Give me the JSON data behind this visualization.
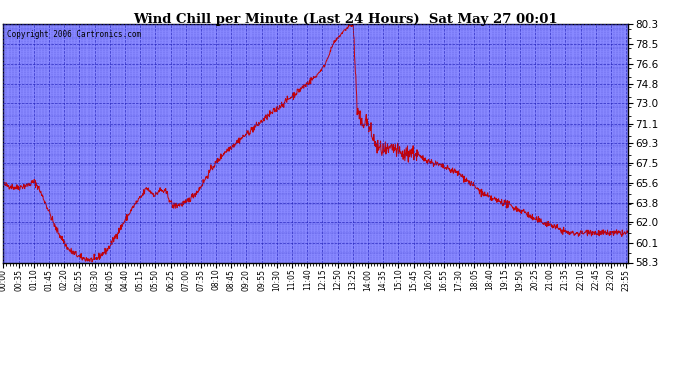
{
  "title": "Wind Chill per Minute (Last 24 Hours)  Sat May 27 00:01",
  "copyright": "Copyright 2006 Cartronics.com",
  "ylim": [
    58.3,
    80.3
  ],
  "yticks": [
    58.3,
    60.1,
    62.0,
    63.8,
    65.6,
    67.5,
    69.3,
    71.1,
    73.0,
    74.8,
    76.6,
    78.5,
    80.3
  ],
  "line_color": "#cc0000",
  "background_color": "#8888ff",
  "outer_bg_color": "#ffffff",
  "grid_color": "#2222bb",
  "title_color": "#000000",
  "xtick_step": 35,
  "n_minutes": 1440
}
